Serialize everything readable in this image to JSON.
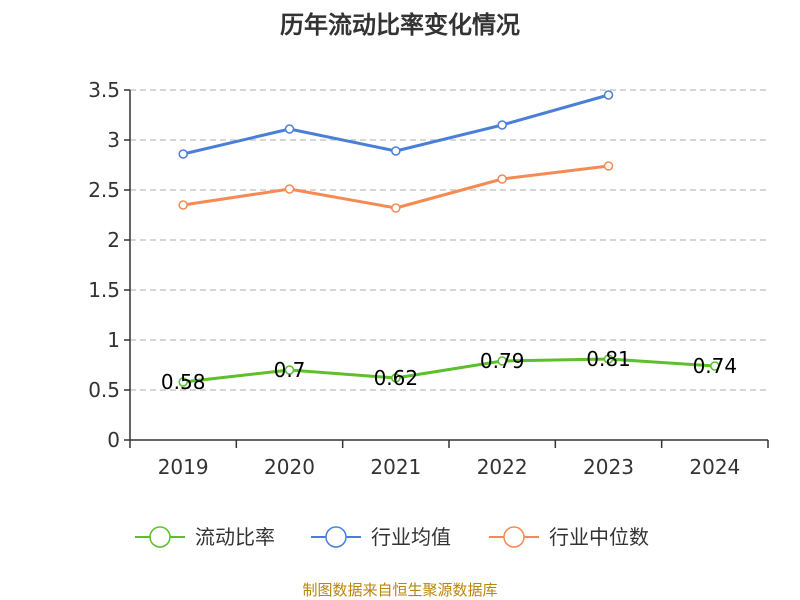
{
  "chart_data": {
    "type": "line",
    "title": "历年流动比率变化情况",
    "categories": [
      "2019",
      "2020",
      "2021",
      "2022",
      "2023",
      "2024"
    ],
    "ylim": [
      0,
      3.5
    ],
    "yticks": [
      "0",
      "0.5",
      "1",
      "1.5",
      "2",
      "2.5",
      "3",
      "3.5"
    ],
    "series": [
      {
        "name": "流动比率",
        "color": "#5bc02b",
        "values": [
          0.58,
          0.7,
          0.62,
          0.79,
          0.81,
          0.74
        ],
        "labels": [
          "0.58",
          "0.7",
          "0.62",
          "0.79",
          "0.81",
          "0.74"
        ]
      },
      {
        "name": "行业均值",
        "color": "#4a7fd8",
        "values": [
          2.86,
          3.11,
          2.89,
          3.15,
          3.45,
          null
        ]
      },
      {
        "name": "行业中位数",
        "color": "#f58a53",
        "values": [
          2.35,
          2.51,
          2.32,
          2.61,
          2.74,
          null
        ]
      }
    ],
    "legend_position": "bottom",
    "grid": true
  },
  "source_text": "制图数据来自恒生聚源数据库"
}
